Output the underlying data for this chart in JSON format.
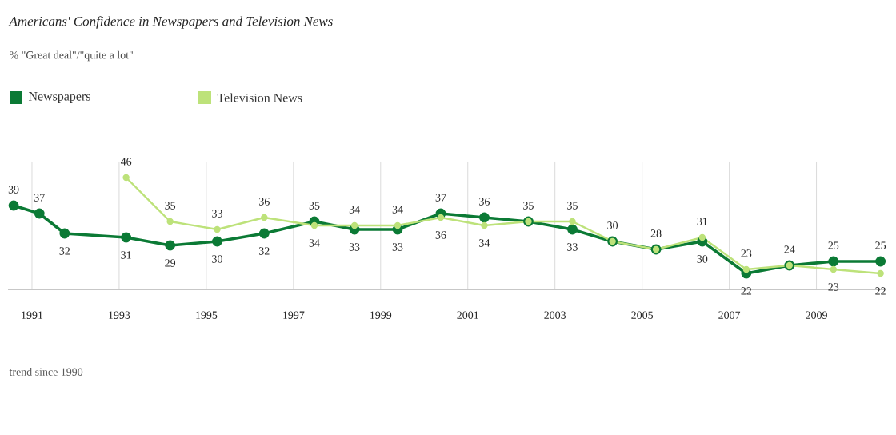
{
  "chart_data": {
    "type": "line",
    "title": "Americans' Confidence in Newspapers and Television News",
    "subtitle": "% \"Great deal\"/\"quite a lot\"",
    "annotations": [
      "trend since 1990"
    ],
    "x": [
      1990.58,
      1991.17,
      1991.75,
      1993.16,
      1994.17,
      1995.25,
      1996.33,
      1997.48,
      1998.4,
      1999.39,
      2000.38,
      2001.38,
      2002.39,
      2003.4,
      2004.32,
      2005.32,
      2006.38,
      2007.39,
      2008.38,
      2009.39,
      2010.47
    ],
    "series": [
      {
        "name": "Newspapers",
        "color": "#0b7a35",
        "values": [
          39,
          37,
          32,
          31,
          29,
          30,
          32,
          35,
          33,
          33,
          37,
          36,
          35,
          33,
          30,
          28,
          30,
          22,
          24,
          25,
          25
        ],
        "value_labels": [
          "39",
          "37",
          "32",
          "31",
          "29",
          "30",
          "32",
          "35",
          "33",
          "33",
          "37",
          "36",
          "35",
          "33",
          "30",
          "28",
          "30",
          "22",
          "24",
          "25",
          "25"
        ]
      },
      {
        "name": "Television News",
        "color": "#bde27a",
        "x": [
          1993.16,
          1994.17,
          1995.25,
          1996.33,
          1997.48,
          1998.4,
          1999.39,
          2000.38,
          2001.38,
          2002.39,
          2003.4,
          2004.32,
          2005.32,
          2006.38,
          2007.39,
          2008.38,
          2009.39,
          2010.47
        ],
        "values": [
          46,
          35,
          33,
          36,
          34,
          34,
          34,
          36,
          34,
          35,
          35,
          30,
          28,
          31,
          23,
          24,
          23,
          22
        ],
        "value_labels": [
          "46",
          "35",
          "33",
          "36",
          "34",
          "34",
          "34",
          "36",
          "34",
          null,
          "35",
          null,
          null,
          "31",
          "23",
          null,
          "23",
          "22"
        ]
      }
    ],
    "xlim": [
      1990.45,
      2010.55
    ],
    "xticks": [
      1991,
      1993,
      1995,
      1997,
      1999,
      2001,
      2003,
      2005,
      2007,
      2009
    ],
    "ylim": [
      18,
      50
    ],
    "tick_labels": "x",
    "grid": "x",
    "legend": "top left",
    "marker": "circle",
    "line_style": "solid"
  }
}
